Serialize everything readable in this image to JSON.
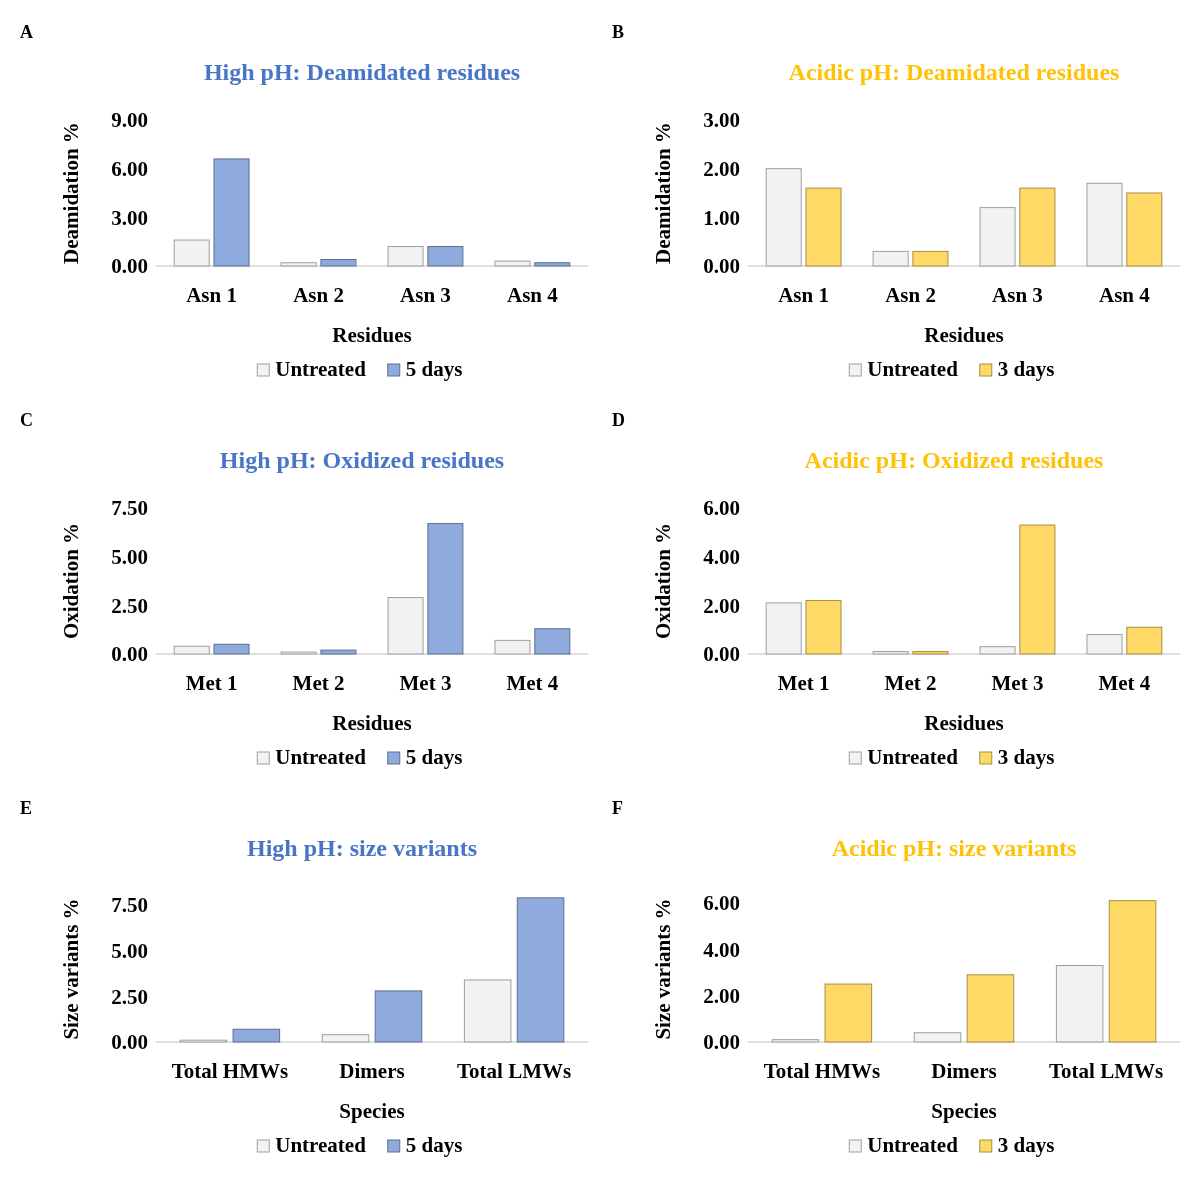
{
  "chart_data": [
    {
      "type": "bar",
      "title": "High pH: Deamidated residues",
      "xlabel": "Residues",
      "ylabel": "Deamidation %",
      "annotations": [
        "A"
      ],
      "categories": [
        "Asn 1",
        "Asn 2",
        "Asn 3",
        "Asn 4"
      ],
      "series": [
        {
          "name": "Untreated",
          "color": "#f2f2f2",
          "values": [
            1.6,
            0.2,
            1.2,
            0.3
          ]
        },
        {
          "name": "5 days",
          "color": "#8faadc",
          "values": [
            6.6,
            0.4,
            1.2,
            0.2
          ]
        }
      ],
      "ylim": [
        0,
        9
      ],
      "yticks": [
        {
          "value": 0,
          "label": "0.00"
        },
        {
          "value": 3,
          "label": "3.00"
        },
        {
          "value": 6,
          "label": "6.00"
        },
        {
          "value": 9,
          "label": "9.00"
        }
      ],
      "grid": false,
      "legend": "bottom"
    },
    {
      "type": "bar",
      "title": "Acidic pH: Deamidated residues",
      "xlabel": "Residues",
      "ylabel": "Deamidation %",
      "annotations": [
        "B"
      ],
      "categories": [
        "Asn 1",
        "Asn 2",
        "Asn 3",
        "Asn 4"
      ],
      "series": [
        {
          "name": "Untreated",
          "color": "#f2f2f2",
          "values": [
            2.0,
            0.3,
            1.2,
            1.7
          ]
        },
        {
          "name": "3 days",
          "color": "#ffd966",
          "values": [
            1.6,
            0.3,
            1.6,
            1.5
          ]
        }
      ],
      "ylim": [
        0,
        3
      ],
      "yticks": [
        {
          "value": 0,
          "label": "0.00"
        },
        {
          "value": 1,
          "label": "1.00"
        },
        {
          "value": 2,
          "label": "2.00"
        },
        {
          "value": 3,
          "label": "3.00"
        }
      ],
      "grid": false,
      "legend": "bottom"
    },
    {
      "type": "bar",
      "title": "High pH: Oxidized residues",
      "xlabel": "Residues",
      "ylabel": "Oxidation %",
      "annotations": [
        "C"
      ],
      "categories": [
        "Met 1",
        "Met 2",
        "Met 3",
        "Met 4"
      ],
      "series": [
        {
          "name": "Untreated",
          "color": "#f2f2f2",
          "values": [
            0.4,
            0.1,
            2.9,
            0.7
          ]
        },
        {
          "name": "5 days",
          "color": "#8faadc",
          "values": [
            0.5,
            0.2,
            6.7,
            1.3
          ]
        }
      ],
      "ylim": [
        0,
        7.5
      ],
      "yticks": [
        {
          "value": 0,
          "label": "0.00"
        },
        {
          "value": 2.5,
          "label": "2.50"
        },
        {
          "value": 5,
          "label": "5.00"
        },
        {
          "value": 7.5,
          "label": "7.50"
        }
      ],
      "grid": false,
      "legend": "bottom"
    },
    {
      "type": "bar",
      "title": "Acidic pH: Oxidized residues",
      "xlabel": "Residues",
      "ylabel": "Oxidation %",
      "annotations": [
        "D"
      ],
      "categories": [
        "Met 1",
        "Met 2",
        "Met 3",
        "Met 4"
      ],
      "series": [
        {
          "name": "Untreated",
          "color": "#f2f2f2",
          "values": [
            2.1,
            0.1,
            0.3,
            0.8
          ]
        },
        {
          "name": "3 days",
          "color": "#ffd966",
          "values": [
            2.2,
            0.1,
            5.3,
            1.1
          ]
        }
      ],
      "ylim": [
        0,
        6
      ],
      "yticks": [
        {
          "value": 0,
          "label": "0.00"
        },
        {
          "value": 2,
          "label": "2.00"
        },
        {
          "value": 4,
          "label": "4.00"
        },
        {
          "value": 6,
          "label": "6.00"
        }
      ],
      "grid": false,
      "legend": "bottom"
    },
    {
      "type": "bar",
      "title": "High pH: size variants",
      "xlabel": "Species",
      "ylabel": "Size variants %",
      "annotations": [
        "E"
      ],
      "categories": [
        "Total HMWs",
        "Dimers",
        "Total LMWs"
      ],
      "series": [
        {
          "name": "Untreated",
          "color": "#f2f2f2",
          "values": [
            0.1,
            0.4,
            3.4
          ]
        },
        {
          "name": "5 days",
          "color": "#8faadc",
          "values": [
            0.7,
            2.8,
            7.9
          ]
        }
      ],
      "ylim": [
        0,
        8
      ],
      "yticks": [
        {
          "value": 0,
          "label": "0.00"
        },
        {
          "value": 2.5,
          "label": "2.50"
        },
        {
          "value": 5,
          "label": "5.00"
        },
        {
          "value": 7.5,
          "label": "7.50"
        }
      ],
      "grid": false,
      "legend": "bottom"
    },
    {
      "type": "bar",
      "title": "Acidic pH: size variants",
      "xlabel": "Species",
      "ylabel": "Size variants %",
      "annotations": [
        "F"
      ],
      "categories": [
        "Total HMWs",
        "Dimers",
        "Total LMWs"
      ],
      "series": [
        {
          "name": "Untreated",
          "color": "#f2f2f2",
          "values": [
            0.1,
            0.4,
            3.3
          ]
        },
        {
          "name": "3 days",
          "color": "#ffd966",
          "values": [
            2.5,
            2.9,
            6.1
          ]
        }
      ],
      "ylim": [
        0,
        6.3
      ],
      "yticks": [
        {
          "value": 0,
          "label": "0.00"
        },
        {
          "value": 2,
          "label": "2.00"
        },
        {
          "value": 4,
          "label": "4.00"
        },
        {
          "value": 6,
          "label": "6.00"
        }
      ],
      "grid": false,
      "legend": "bottom"
    }
  ]
}
